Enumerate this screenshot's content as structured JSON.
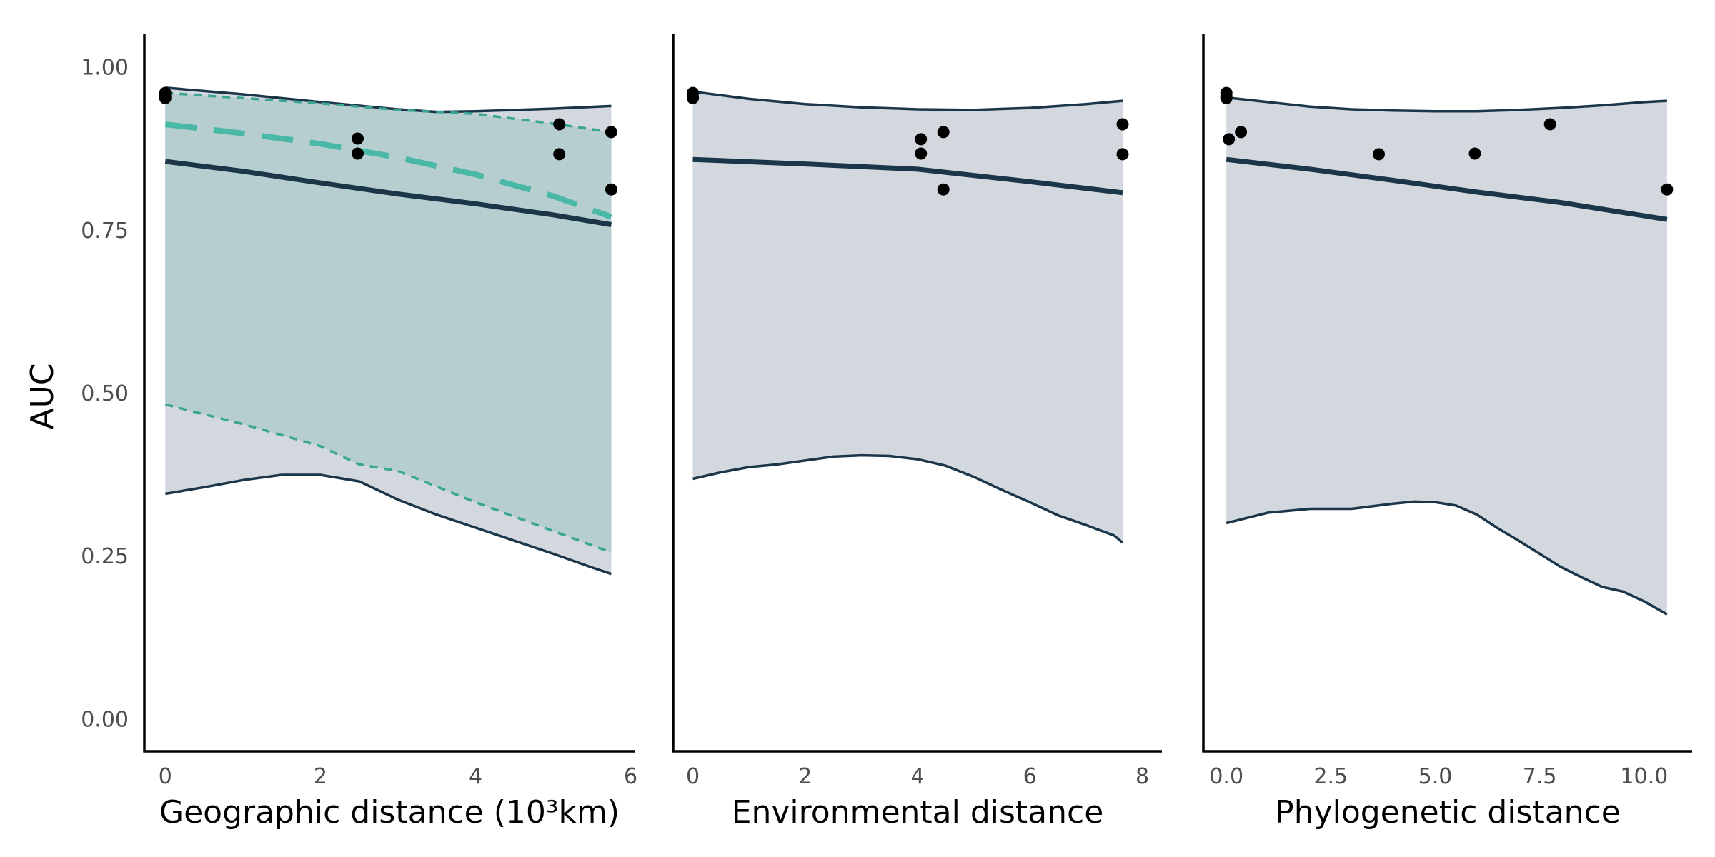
{
  "colors": {
    "navy": "#1b3549",
    "ribbon_grey": "#d2d8dd",
    "teal": "#4ab8a6",
    "teal_band": "#b3cdce",
    "teal_dashed_outer": "#3aa592",
    "point": "#000000",
    "axis": "#000000",
    "tick_text": "#4d4d4d"
  },
  "chart_data": [
    {
      "type": "line",
      "xlabel": "Geographic distance (10³km)",
      "ylabel": "AUC",
      "xlim": [
        -0.27,
        6.05
      ],
      "ylim": [
        -0.05,
        1.05
      ],
      "xticks": [
        0,
        2,
        4,
        6
      ],
      "xtick_labels": [
        "0",
        "2",
        "4",
        "6"
      ],
      "yticks": [
        0.0,
        0.25,
        0.5,
        0.75,
        1.0
      ],
      "ytick_labels": [
        "0.00",
        "0.25",
        "0.50",
        "0.75",
        "1.00"
      ],
      "points": [
        {
          "x": 0,
          "y": 0.96
        },
        {
          "x": 0,
          "y": 0.955
        },
        {
          "x": 0,
          "y": 0.952
        },
        {
          "x": 2.48,
          "y": 0.89
        },
        {
          "x": 2.48,
          "y": 0.867
        },
        {
          "x": 5.08,
          "y": 0.912
        },
        {
          "x": 5.08,
          "y": 0.866
        },
        {
          "x": 5.75,
          "y": 0.9
        },
        {
          "x": 5.75,
          "y": 0.812
        }
      ],
      "band_upper": {
        "x": [
          0,
          1,
          2,
          3,
          3.5,
          4,
          5,
          5.75
        ],
        "y": [
          0.968,
          0.958,
          0.946,
          0.935,
          0.931,
          0.932,
          0.936,
          0.94
        ]
      },
      "band_lower": {
        "x": [
          0,
          0.5,
          1,
          1.5,
          2,
          2.5,
          3,
          3.5,
          4,
          4.5,
          5,
          5.5,
          5.75
        ],
        "y": [
          0.345,
          0.355,
          0.366,
          0.374,
          0.374,
          0.364,
          0.336,
          0.313,
          0.293,
          0.273,
          0.253,
          0.232,
          0.222
        ]
      },
      "mean_line": {
        "x": [
          0,
          1,
          2,
          3,
          4,
          5,
          5.75
        ],
        "y": [
          0.855,
          0.84,
          0.822,
          0.805,
          0.79,
          0.773,
          0.758
        ]
      },
      "teal_band_upper": {
        "x": [
          0,
          1,
          2,
          3,
          4,
          5,
          5.75
        ],
        "y": [
          0.96,
          0.952,
          0.944,
          0.934,
          0.928,
          0.913,
          0.9
        ]
      },
      "teal_band_lower": {
        "x": [
          0,
          1,
          2,
          2.5,
          3,
          4,
          5,
          5.75
        ],
        "y": [
          0.482,
          0.452,
          0.418,
          0.39,
          0.38,
          0.332,
          0.288,
          0.255
        ]
      },
      "teal_mean": {
        "x": [
          0,
          1,
          2,
          3,
          4,
          5,
          5.75
        ],
        "y": [
          0.912,
          0.898,
          0.882,
          0.861,
          0.835,
          0.802,
          0.77
        ]
      }
    },
    {
      "type": "line",
      "xlabel": "Environmental distance",
      "ylabel": "",
      "xlim": [
        -0.35,
        8.35
      ],
      "ylim": [
        -0.05,
        1.05
      ],
      "xticks": [
        0,
        2,
        4,
        6,
        8
      ],
      "xtick_labels": [
        "0",
        "2",
        "4",
        "6",
        "8"
      ],
      "points": [
        {
          "x": 0,
          "y": 0.96
        },
        {
          "x": 0,
          "y": 0.955
        },
        {
          "x": 0,
          "y": 0.952
        },
        {
          "x": 4.06,
          "y": 0.889
        },
        {
          "x": 4.06,
          "y": 0.867
        },
        {
          "x": 4.46,
          "y": 0.9
        },
        {
          "x": 4.46,
          "y": 0.812
        },
        {
          "x": 7.65,
          "y": 0.912
        },
        {
          "x": 7.65,
          "y": 0.866
        }
      ],
      "band_upper": {
        "x": [
          0,
          1,
          2,
          3,
          4,
          5,
          6,
          7,
          7.65
        ],
        "y": [
          0.962,
          0.951,
          0.943,
          0.938,
          0.935,
          0.934,
          0.937,
          0.943,
          0.948
        ]
      },
      "band_lower": {
        "x": [
          0,
          0.5,
          1,
          1.5,
          2,
          2.5,
          3,
          3.5,
          4,
          4.5,
          5,
          5.5,
          6,
          6.5,
          7,
          7.5,
          7.65
        ],
        "y": [
          0.368,
          0.378,
          0.386,
          0.39,
          0.396,
          0.402,
          0.404,
          0.403,
          0.398,
          0.388,
          0.371,
          0.351,
          0.332,
          0.312,
          0.297,
          0.281,
          0.27
        ]
      },
      "mean_line": {
        "x": [
          0,
          2,
          4,
          6,
          7.65
        ],
        "y": [
          0.858,
          0.851,
          0.843,
          0.824,
          0.807
        ]
      }
    },
    {
      "type": "line",
      "xlabel": "Phylogenetic distance",
      "ylabel": "",
      "xlim": [
        -0.55,
        11.15
      ],
      "ylim": [
        -0.05,
        1.05
      ],
      "xticks": [
        0,
        2.5,
        5,
        7.5,
        10
      ],
      "xtick_labels": [
        "0.0",
        "2.5",
        "5.0",
        "7.5",
        "10.0"
      ],
      "points": [
        {
          "x": 0,
          "y": 0.96
        },
        {
          "x": 0,
          "y": 0.955
        },
        {
          "x": 0,
          "y": 0.952
        },
        {
          "x": 0.06,
          "y": 0.889
        },
        {
          "x": 0.35,
          "y": 0.9
        },
        {
          "x": 3.65,
          "y": 0.866
        },
        {
          "x": 5.95,
          "y": 0.867
        },
        {
          "x": 7.75,
          "y": 0.912
        },
        {
          "x": 10.55,
          "y": 0.812
        }
      ],
      "band_upper": {
        "x": [
          0,
          1,
          2,
          3,
          4,
          5,
          6,
          7,
          8,
          9,
          10,
          10.55
        ],
        "y": [
          0.953,
          0.946,
          0.939,
          0.935,
          0.933,
          0.932,
          0.932,
          0.934,
          0.937,
          0.941,
          0.946,
          0.948
        ]
      },
      "band_lower": {
        "x": [
          0,
          0.5,
          1,
          2,
          3,
          4,
          4.5,
          5,
          5.5,
          6,
          6.5,
          7,
          7.5,
          8,
          8.5,
          9,
          9.5,
          10,
          10.55
        ],
        "y": [
          0.3,
          0.308,
          0.316,
          0.322,
          0.322,
          0.33,
          0.333,
          0.332,
          0.327,
          0.313,
          0.292,
          0.273,
          0.253,
          0.233,
          0.217,
          0.202,
          0.195,
          0.18,
          0.16
        ]
      },
      "mean_line": {
        "x": [
          0,
          2,
          4,
          6,
          8,
          10.55
        ],
        "y": [
          0.858,
          0.843,
          0.826,
          0.808,
          0.792,
          0.766
        ]
      }
    }
  ]
}
